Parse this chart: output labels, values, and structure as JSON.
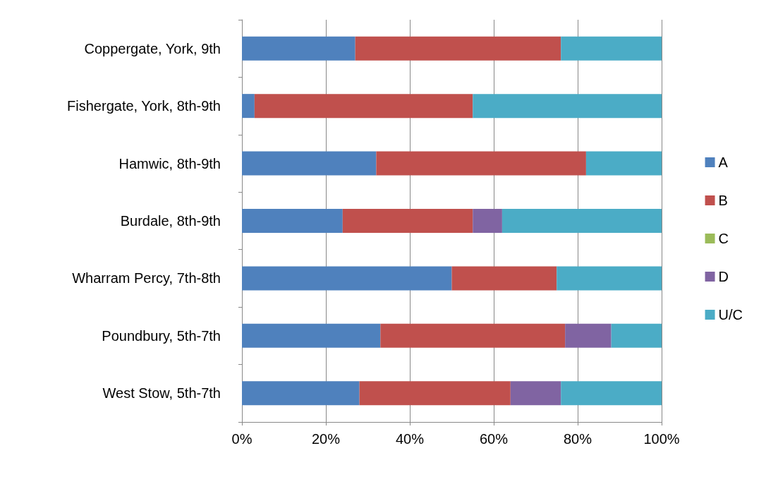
{
  "chart_data": {
    "type": "bar",
    "orientation": "horizontal",
    "stacked": true,
    "categories": [
      "Coppergate, York, 9th",
      "Fishergate, York, 8th-9th",
      "Hamwic, 8th-9th",
      "Burdale, 8th-9th",
      "Wharram Percy, 7th-8th",
      "Poundbury, 5th-7th",
      "West Stow, 5th-7th"
    ],
    "series": [
      {
        "name": "A",
        "color": "#4f81bd",
        "values": [
          27,
          3,
          32,
          24,
          50,
          33,
          28
        ]
      },
      {
        "name": "B",
        "color": "#c0504d",
        "values": [
          49,
          52,
          50,
          31,
          25,
          44,
          36
        ]
      },
      {
        "name": "C",
        "color": "#9bbb59",
        "values": [
          0,
          0,
          0,
          0,
          0,
          0,
          0
        ]
      },
      {
        "name": "D",
        "color": "#8064a2",
        "values": [
          0,
          0,
          0,
          7,
          0,
          11,
          12
        ]
      },
      {
        "name": "U/C",
        "color": "#4bacc6",
        "values": [
          24,
          45,
          18,
          38,
          25,
          12,
          24
        ]
      }
    ],
    "xlim": [
      0,
      100
    ],
    "xticks": [
      {
        "value": 0,
        "label": "0%"
      },
      {
        "value": 20,
        "label": "20%"
      },
      {
        "value": 40,
        "label": "40%"
      },
      {
        "value": 60,
        "label": "60%"
      },
      {
        "value": 80,
        "label": "80%"
      },
      {
        "value": 100,
        "label": "100%"
      }
    ],
    "grid": "x",
    "legend": "right"
  }
}
